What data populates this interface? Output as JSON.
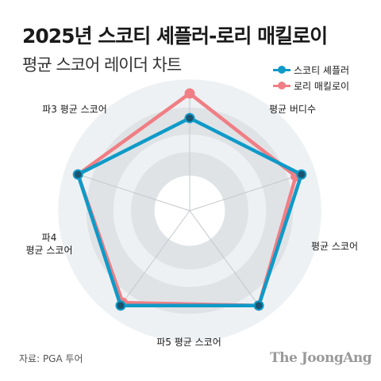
{
  "header": {
    "title": "2025년 스코티 셰플러-로리 매킬로이",
    "subtitle": "평균 스코어 레이더 차트"
  },
  "footer": {
    "source": "자료: PGA 투어",
    "brand": "The JoongAng"
  },
  "colors": {
    "ring_light": "#eef1f3",
    "ring_dark": "#dfe3e6",
    "spoke": "#c4c8cc",
    "scheffler": "#0f9ac8",
    "scheffler_marker": "#1a5570",
    "mcilroy": "#f07e84"
  },
  "chart_data": {
    "type": "radar",
    "axes": [
      "파3 평균 스코어",
      "평균 버디수",
      "평균 스코어",
      "파5 평균 스코어",
      "파4\n평균 스코어"
    ],
    "rlim": [
      0,
      1
    ],
    "grid": "concentric circles",
    "legend_position": "top-right",
    "series": [
      {
        "name": "스코티 셰플러",
        "values": [
          0.79,
          1.0,
          1.0,
          1.0,
          1.0
        ]
      },
      {
        "name": "로리 매킬로이",
        "values": [
          1.0,
          0.95,
          1.0,
          0.97,
          1.0
        ]
      }
    ]
  }
}
